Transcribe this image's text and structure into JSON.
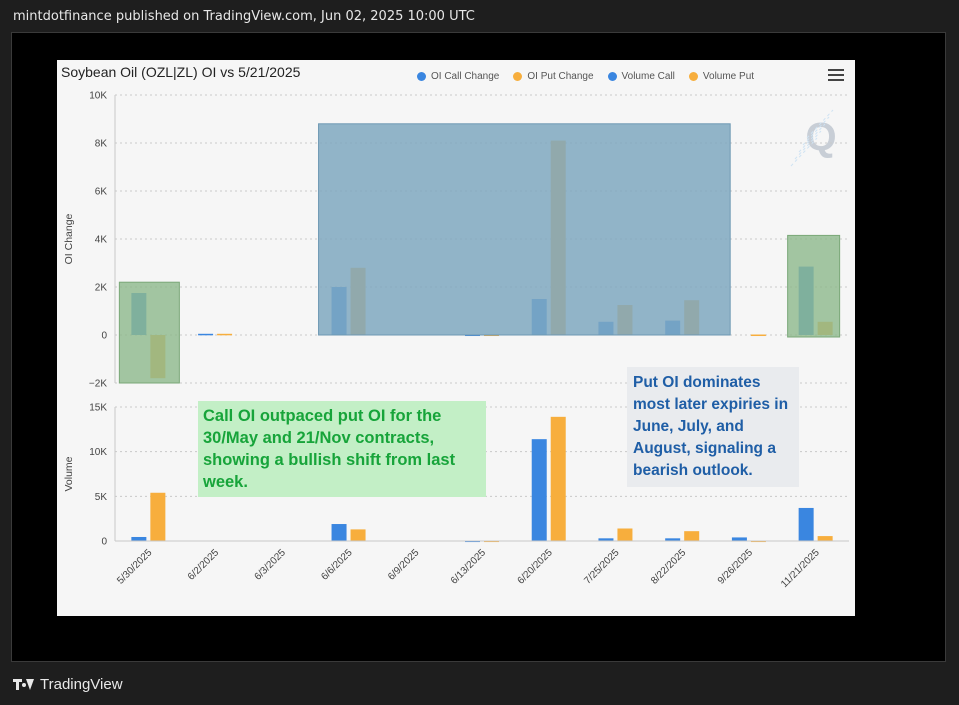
{
  "header": {
    "published_text": "mintdotfinance published on TradingView.com, Jun 02, 2025 10:00 UTC"
  },
  "footer": {
    "brand": "TradingView"
  },
  "colors": {
    "call": "#3a86e0",
    "put": "#f7ae3d",
    "highlight_blue": "#7fa8c0",
    "highlight_green": "#8fb98d"
  },
  "annotations": {
    "green_note": "Call OI outpaced put OI for the 30/May and 21/Nov contracts, showing a bullish shift from last week.",
    "blue_note": "Put OI dominates most later expiries in June, July, and August, signaling a bearish outlook."
  },
  "chart_data": {
    "type": "bar",
    "title": "Soybean Oil (OZL|ZL) OI vs 5/21/2025",
    "legend": [
      "OI Call Change",
      "OI Put Change",
      "Volume Call",
      "Volume Put"
    ],
    "legend_position": "top-right",
    "categories": [
      "5/30/2025",
      "6/2/2025",
      "6/3/2025",
      "6/6/2025",
      "6/9/2025",
      "6/13/2025",
      "6/20/2025",
      "7/25/2025",
      "8/22/2025",
      "9/26/2025",
      "11/21/2025"
    ],
    "panels": [
      {
        "ylabel": "OI Change",
        "ylim": [
          -2000,
          10000
        ],
        "yticks": [
          -2000,
          0,
          2000,
          4000,
          6000,
          8000,
          10000
        ],
        "ytick_labels": [
          "−2K",
          "0",
          "2K",
          "4K",
          "6K",
          "8K",
          "10K"
        ],
        "series": [
          {
            "name": "OI Call Change",
            "values": [
              1750,
              50,
              0,
              2000,
              0,
              20,
              1500,
              550,
              600,
              0,
              2850
            ]
          },
          {
            "name": "OI Put Change",
            "values": [
              -1800,
              50,
              0,
              2800,
              0,
              20,
              8100,
              1250,
              1450,
              20,
              550
            ]
          }
        ]
      },
      {
        "ylabel": "Volume",
        "ylim": [
          0,
          15000
        ],
        "yticks": [
          0,
          5000,
          10000,
          15000
        ],
        "ytick_labels": [
          "0",
          "5K",
          "10K",
          "15K"
        ],
        "series": [
          {
            "name": "Volume Call",
            "values": [
              450,
              0,
              0,
              1900,
              0,
              50,
              11400,
              300,
              300,
              400,
              3700
            ]
          },
          {
            "name": "Volume Put",
            "values": [
              5400,
              0,
              0,
              1300,
              0,
              50,
              13900,
              1400,
              1100,
              50,
              550
            ]
          }
        ]
      }
    ],
    "grid": true
  }
}
